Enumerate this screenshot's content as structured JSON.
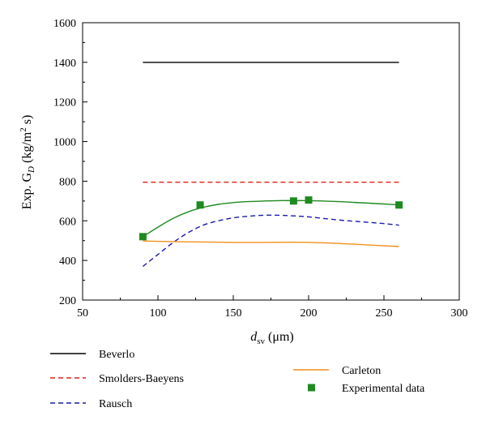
{
  "chart_data": {
    "type": "line",
    "xlabel": {
      "main": "d",
      "sub": "sv",
      "rest": " (μm)"
    },
    "ylabel": {
      "pre": "Exp. G",
      "sub": "D",
      "mid": " (kg/m",
      "sup": "2",
      "post": " s)"
    },
    "xlim": [
      50,
      300
    ],
    "ylim": [
      200,
      1600
    ],
    "xticks": [
      50,
      100,
      150,
      200,
      250,
      300
    ],
    "yticks": [
      200,
      400,
      600,
      800,
      1000,
      1200,
      1400,
      1600
    ],
    "grid": false,
    "legend_position": "bottom",
    "series": [
      {
        "name": "Beverlo",
        "style": "solid",
        "color": "#000000",
        "marker": "none",
        "x": [
          90,
          260
        ],
        "y": [
          1400,
          1400
        ]
      },
      {
        "name": "Smolders-Baeyens",
        "style": "dashed",
        "color": "#e0201a",
        "marker": "none",
        "x": [
          90,
          260
        ],
        "y": [
          795,
          795
        ]
      },
      {
        "name": "Rausch",
        "style": "dashed",
        "color": "#1a1ab0",
        "marker": "none",
        "x": [
          90,
          100,
          110,
          120,
          130,
          140,
          150,
          160,
          170,
          180,
          190,
          200,
          210,
          220,
          230,
          240,
          250,
          260
        ],
        "y": [
          370,
          430,
          490,
          540,
          578,
          600,
          615,
          623,
          628,
          628,
          625,
          620,
          612,
          604,
          598,
          592,
          586,
          578
        ]
      },
      {
        "name": "Carleton",
        "style": "solid",
        "color": "#f0901a",
        "marker": "none",
        "x": [
          90,
          110,
          130,
          150,
          170,
          190,
          210,
          230,
          260
        ],
        "y": [
          498,
          495,
          493,
          491,
          491,
          492,
          489,
          482,
          470
        ]
      },
      {
        "name": "Experimental data",
        "style": "none",
        "color": "#1f8a1f",
        "marker": "square",
        "x": [
          90,
          128,
          190,
          200,
          260
        ],
        "y": [
          520,
          680,
          700,
          705,
          680
        ]
      },
      {
        "name": "",
        "style": "solid",
        "color": "#1f8a1f",
        "marker": "none",
        "x": [
          90,
          100,
          110,
          120,
          130,
          140,
          150,
          160,
          170,
          180,
          190,
          200,
          210,
          220,
          230,
          240,
          250,
          260
        ],
        "y": [
          520,
          568,
          612,
          645,
          668,
          683,
          692,
          697,
          700,
          702,
          702,
          702,
          700,
          697,
          693,
          689,
          685,
          680
        ]
      }
    ],
    "legend": [
      {
        "label": "Beverlo",
        "series": 0
      },
      {
        "label": "Smolders-Baeyens",
        "series": 1
      },
      {
        "label": "Rausch",
        "series": 2
      },
      {
        "label": "Carleton",
        "series": 3
      },
      {
        "label": "Experimental data",
        "series": 4
      }
    ]
  }
}
